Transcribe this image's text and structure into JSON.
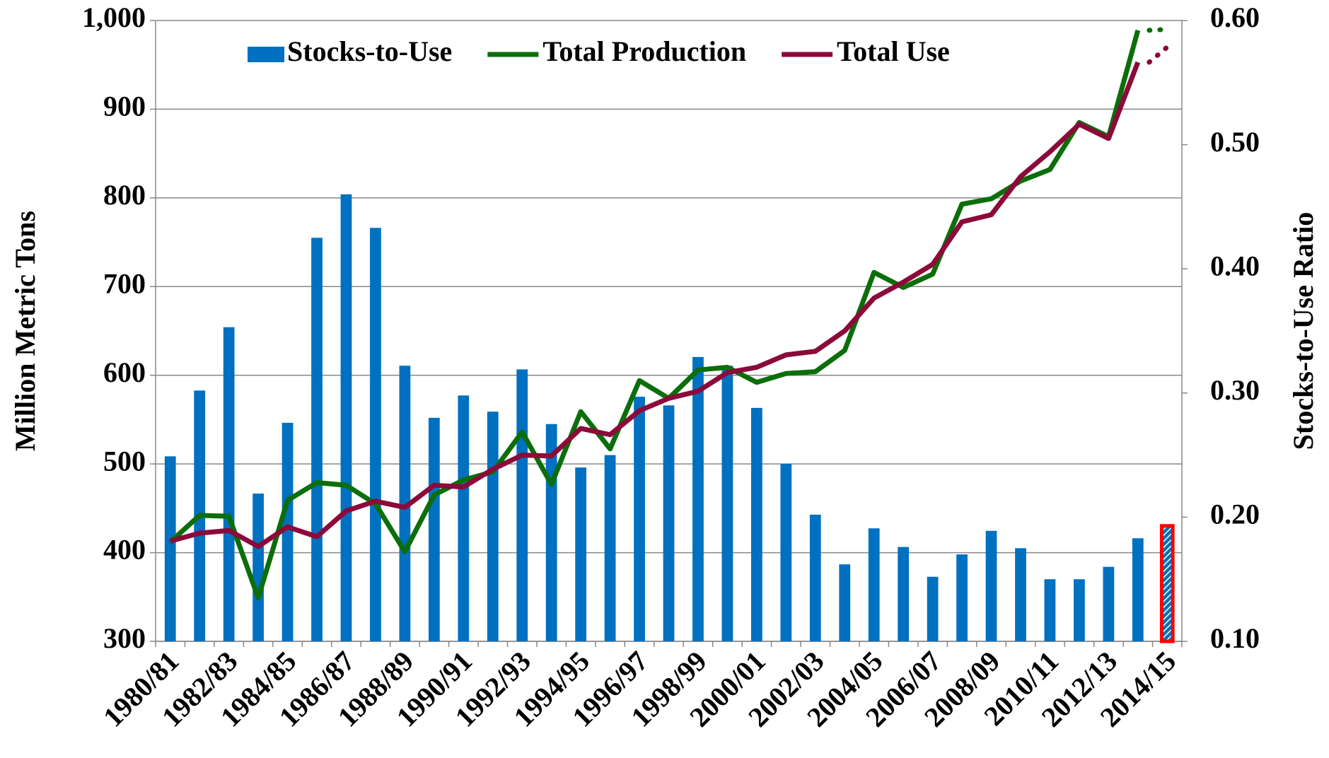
{
  "chart_data": {
    "type": "bar-line",
    "y_label": "Million Metric Tons",
    "y2_label": "Stocks-to-Use Ratio",
    "categories": [
      "1980/81",
      null,
      "1982/83",
      null,
      "1984/85",
      null,
      "1986/87",
      null,
      "1988/89",
      null,
      "1990/91",
      null,
      "1992/93",
      null,
      "1994/95",
      null,
      "1996/97",
      null,
      "1998/99",
      null,
      "2000/01",
      null,
      "2002/03",
      null,
      "2004/05",
      null,
      "2006/07",
      null,
      "2008/09",
      null,
      "2010/11",
      null,
      "2012/13",
      null,
      "2014/15"
    ],
    "series": [
      {
        "name": "Stocks-to-Use",
        "type": "bar",
        "axis": "y2",
        "color": "#0070c0",
        "values": [
          0.249,
          0.302,
          0.353,
          0.219,
          0.276,
          0.425,
          0.46,
          0.433,
          0.322,
          0.28,
          0.298,
          0.285,
          0.319,
          0.275,
          0.24,
          0.25,
          0.297,
          0.29,
          0.329,
          0.322,
          0.288,
          0.243,
          0.202,
          0.162,
          0.191,
          0.176,
          0.152,
          0.17,
          0.189,
          0.175,
          0.15,
          0.15,
          0.16,
          0.183,
          0.193
        ]
      },
      {
        "name": "Total Production",
        "type": "line",
        "color": "#0b6e0b",
        "values": [
          412,
          442,
          441,
          349,
          459,
          479,
          476,
          455,
          401,
          465,
          482,
          491,
          536,
          477,
          559,
          517,
          594,
          574,
          606,
          609,
          592,
          602,
          604,
          628,
          716,
          699,
          714,
          793,
          799,
          819,
          832,
          885,
          869,
          989,
          990
        ]
      },
      {
        "name": "Total Use",
        "type": "line",
        "color": "#8b0a3a",
        "values": [
          413,
          422,
          425,
          407,
          429,
          418,
          447,
          458,
          451,
          476,
          474,
          494,
          510,
          509,
          540,
          533,
          560,
          574,
          582,
          603,
          609,
          623,
          627,
          650,
          687,
          705,
          725,
          773,
          781,
          824,
          852,
          883,
          867,
          953,
          970
        ]
      }
    ],
    "ylim": [
      300,
      1000
    ],
    "yticks": [
      300,
      400,
      500,
      600,
      700,
      800,
      900,
      {
        "value": 1000,
        "label": "1,000"
      }
    ],
    "y2lim": [
      0.1,
      0.6
    ],
    "y2ticks": [
      {
        "value": 0.1,
        "label": "0.10"
      },
      {
        "value": 0.2,
        "label": "0.20"
      },
      {
        "value": 0.3,
        "label": "0.30"
      },
      {
        "value": 0.4,
        "label": "0.40"
      },
      {
        "value": 0.5,
        "label": "0.50"
      },
      {
        "value": 0.6,
        "label": "0.60"
      }
    ],
    "grid": true,
    "legend": "top"
  }
}
